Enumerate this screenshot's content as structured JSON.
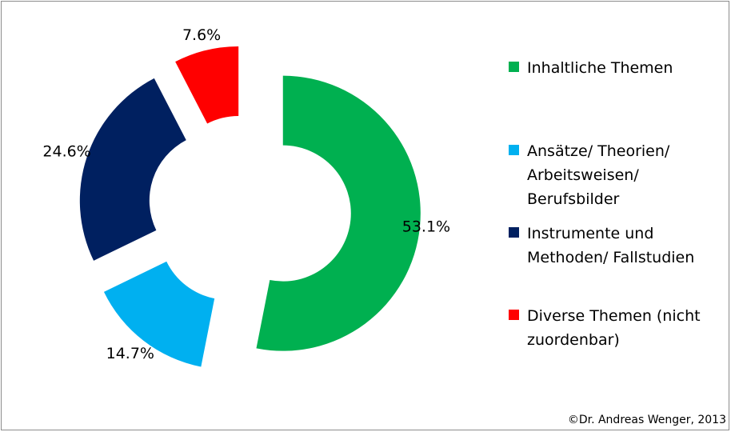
{
  "chart_data": {
    "type": "pie",
    "title": "",
    "categories": [
      "Inhaltliche Themen",
      "Ansätze/ Theorien/\nArbeitsweisen/\nBerufsbilder",
      "Instrumente und\nMethoden/ Fallstudien",
      "Diverse Themen (nicht\nzuordenbar)"
    ],
    "values": [
      53.1,
      14.7,
      24.6,
      7.6
    ],
    "value_labels": [
      "53.1%",
      "14.7%",
      "24.6%",
      "7.6%"
    ],
    "colors": [
      "#00b050",
      "#00b0f0",
      "#002060",
      "#ff0000"
    ],
    "style": "exploded doughnut",
    "legend_position": "right"
  },
  "copyright": "©Dr. Andreas Wenger, 2013"
}
